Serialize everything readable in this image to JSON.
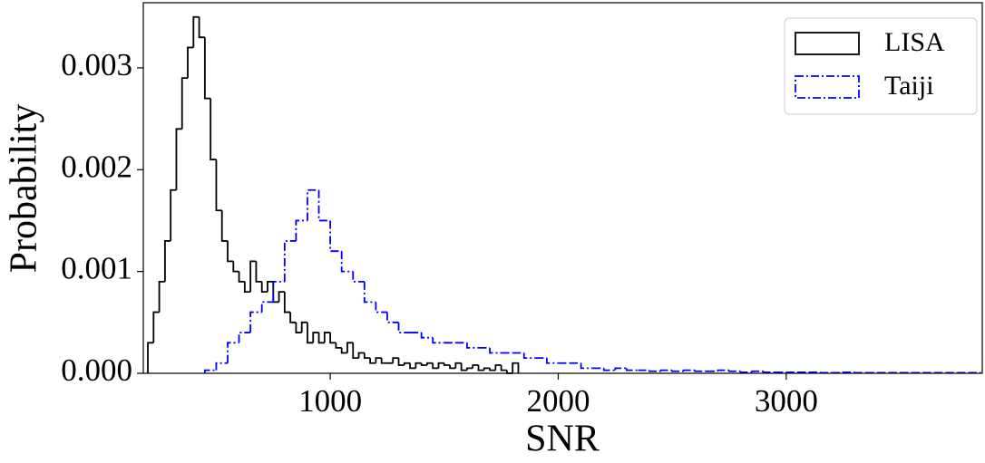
{
  "chart_data": {
    "type": "histogram",
    "x_label": "SNR",
    "y_label": "Probability",
    "xlim": [
      180,
      3860
    ],
    "ylim": [
      0,
      0.00364
    ],
    "xticks": [
      1000,
      2000,
      3000
    ],
    "yticks": [
      {
        "value": 0,
        "label": "0.000"
      },
      {
        "value": 0.001,
        "label": "0.001"
      },
      {
        "value": 0.002,
        "label": "0.002"
      },
      {
        "value": 0.003,
        "label": "0.003"
      }
    ],
    "legend": "upper right",
    "series": [
      {
        "name": "LISA",
        "color": "#000000",
        "line_style": "solid",
        "bins": [
          200,
          225,
          250,
          275,
          300,
          325,
          350,
          375,
          400,
          425,
          450,
          475,
          500,
          525,
          550,
          575,
          600,
          625,
          650,
          675,
          700,
          725,
          750,
          775,
          800,
          825,
          850,
          875,
          900,
          925,
          950,
          975,
          1000,
          1025,
          1050,
          1075,
          1100,
          1125,
          1150,
          1175,
          1200,
          1225,
          1250,
          1275,
          1300,
          1325,
          1350,
          1375,
          1400,
          1425,
          1450,
          1475,
          1500,
          1525,
          1550,
          1575,
          1600,
          1625,
          1650,
          1675,
          1700,
          1725,
          1750,
          1775,
          1800,
          1825
        ],
        "values": [
          0.0003,
          0.0006,
          0.0009,
          0.0013,
          0.0018,
          0.0024,
          0.0029,
          0.0032,
          0.0035,
          0.0033,
          0.0027,
          0.0021,
          0.0016,
          0.0013,
          0.0011,
          0.001,
          0.0009,
          0.0008,
          0.0011,
          0.0009,
          0.0008,
          0.0009,
          0.0007,
          0.0008,
          0.0006,
          0.0005,
          0.0004,
          0.0005,
          0.0003,
          0.0004,
          0.0003,
          0.0004,
          0.0003,
          0.00025,
          0.0002,
          0.0003,
          0.00015,
          0.0002,
          0.00015,
          0.0001,
          0.00015,
          0.0001,
          0.0001,
          0.00015,
          8e-05,
          0.0001,
          5e-05,
          0.0001,
          8e-05,
          0.0001,
          5e-05,
          0.0001,
          8e-05,
          5e-05,
          0.0001,
          3e-05,
          5e-05,
          8e-05,
          3e-05,
          5e-05,
          3e-05,
          8e-05,
          3e-05,
          0,
          0.0001
        ]
      },
      {
        "name": "Taiji",
        "color": "#0000ff",
        "line_style": "dashdot",
        "bins": [
          450,
          500,
          550,
          600,
          650,
          700,
          750,
          800,
          850,
          900,
          950,
          1000,
          1050,
          1100,
          1150,
          1200,
          1250,
          1300,
          1350,
          1400,
          1450,
          1500,
          1550,
          1600,
          1650,
          1700,
          1750,
          1800,
          1850,
          1900,
          1950,
          2000,
          2050,
          2100,
          2150,
          2200,
          2250,
          2300,
          2350,
          2400,
          2450,
          2500,
          2550,
          2600,
          2650,
          2700,
          2750,
          2800,
          2850,
          2900,
          2950,
          3000,
          3050,
          3100,
          3150,
          3200,
          3250,
          3300,
          3350,
          3400,
          3450,
          3500,
          3550,
          3600,
          3650,
          3700,
          3750,
          3800,
          3850
        ],
        "values": [
          3e-05,
          0.0001,
          0.0003,
          0.0004,
          0.0006,
          0.0007,
          0.0009,
          0.0013,
          0.0015,
          0.0018,
          0.0015,
          0.0012,
          0.001,
          0.0009,
          0.0007,
          0.0006,
          0.0005,
          0.0004,
          0.0004,
          0.00035,
          0.0003,
          0.0003,
          0.0003,
          0.00025,
          0.00025,
          0.0002,
          0.0002,
          0.0002,
          0.00015,
          0.00015,
          0.0001,
          0.0001,
          0.0001,
          5e-05,
          5e-05,
          3e-05,
          5e-05,
          3e-05,
          3e-05,
          2e-05,
          3e-05,
          2e-05,
          3e-05,
          2e-05,
          2e-05,
          3e-05,
          2e-05,
          1e-05,
          2e-05,
          1e-05,
          1e-05,
          1e-05,
          1e-05,
          1e-05,
          5e-06,
          5e-06,
          1e-05,
          5e-06,
          5e-06,
          5e-06,
          5e-06,
          5e-06,
          5e-06,
          5e-06,
          5e-06,
          5e-06,
          5e-06,
          5e-06
        ]
      }
    ]
  }
}
